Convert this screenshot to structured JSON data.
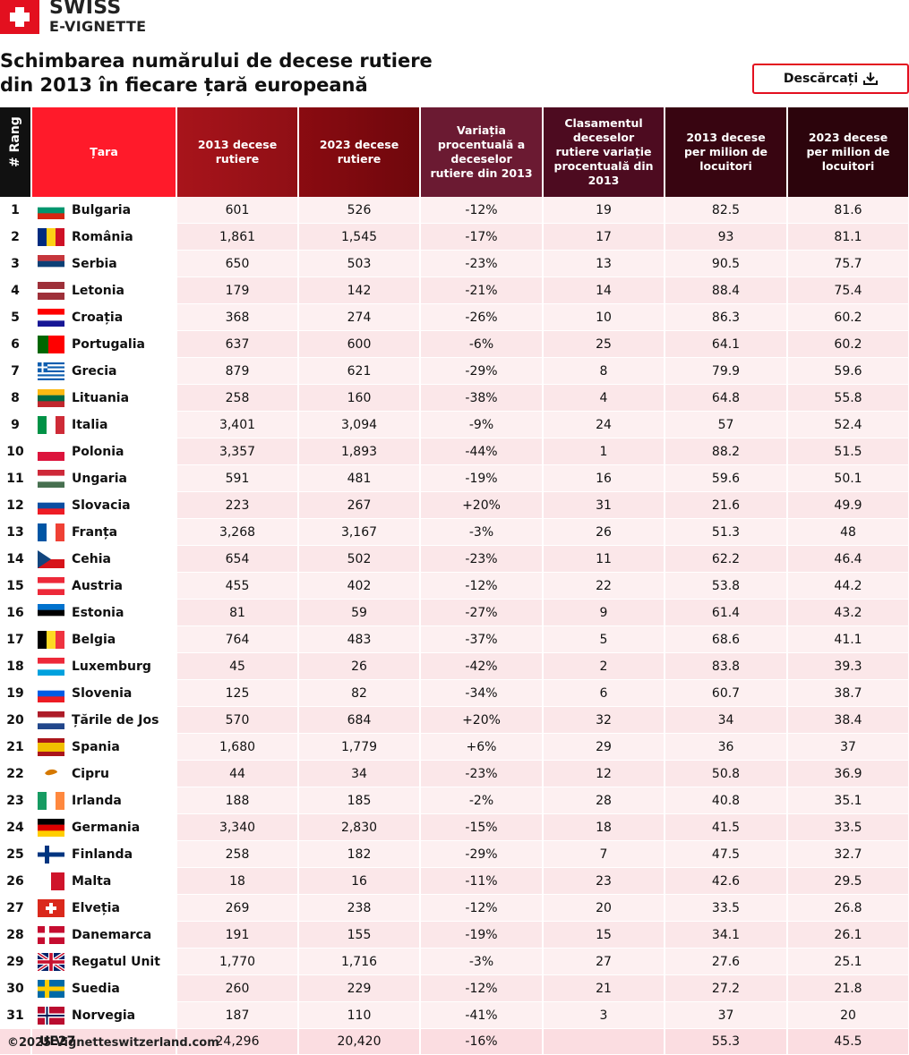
{
  "logo": {
    "line1": "SWISS",
    "line2": "E-VIGNETTE"
  },
  "title": {
    "line1": "Schimbarea numărului de decese rutiere",
    "line2": "din 2013 în fiecare țară europeană"
  },
  "download_button": "Descărcați",
  "table": {
    "headers": [
      "# Rang",
      "Țara",
      "2013 decese rutiere",
      "2023 decese rutiere",
      "Variația procentuală a deceselor rutiere din 2013",
      "Clasamentul deceselor rutiere variație procentuală din 2013",
      "2013 decese per milion de locuitori",
      "2023 decese per milion de locuitori"
    ],
    "rows": [
      [
        1,
        "Bulgaria",
        601,
        526,
        "-12%",
        19,
        82.5,
        81.6
      ],
      [
        2,
        "România",
        "1,861",
        "1,545",
        "-17%",
        17,
        93,
        81.1
      ],
      [
        3,
        "Serbia",
        650,
        503,
        "-23%",
        13,
        90.5,
        75.7
      ],
      [
        4,
        "Letonia",
        179,
        142,
        "-21%",
        14,
        88.4,
        75.4
      ],
      [
        5,
        "Croația",
        368,
        274,
        "-26%",
        10,
        86.3,
        60.2
      ],
      [
        6,
        "Portugalia",
        637,
        600,
        "-6%",
        25,
        64.1,
        60.2
      ],
      [
        7,
        "Grecia",
        879,
        621,
        "-29%",
        8,
        79.9,
        59.6
      ],
      [
        8,
        "Lituania",
        258,
        160,
        "-38%",
        4,
        64.8,
        55.8
      ],
      [
        9,
        "Italia",
        "3,401",
        "3,094",
        "-9%",
        24,
        57,
        52.4
      ],
      [
        10,
        "Polonia",
        "3,357",
        "1,893",
        "-44%",
        1,
        88.2,
        51.5
      ],
      [
        11,
        "Ungaria",
        591,
        481,
        "-19%",
        16,
        59.6,
        50.1
      ],
      [
        12,
        "Slovacia",
        223,
        267,
        "+20%",
        31,
        21.6,
        49.9
      ],
      [
        13,
        "Franța",
        "3,268",
        "3,167",
        "-3%",
        26,
        51.3,
        48
      ],
      [
        14,
        "Cehia",
        654,
        502,
        "-23%",
        11,
        62.2,
        46.4
      ],
      [
        15,
        "Austria",
        455,
        402,
        "-12%",
        22,
        53.8,
        44.2
      ],
      [
        16,
        "Estonia",
        81,
        59,
        "-27%",
        9,
        61.4,
        43.2
      ],
      [
        17,
        "Belgia",
        764,
        483,
        "-37%",
        5,
        68.6,
        41.1
      ],
      [
        18,
        "Luxemburg",
        45,
        26,
        "-42%",
        2,
        83.8,
        39.3
      ],
      [
        19,
        "Slovenia",
        125,
        82,
        "-34%",
        6,
        60.7,
        38.7
      ],
      [
        20,
        "Țările de Jos",
        570,
        684,
        "+20%",
        32,
        34,
        38.4
      ],
      [
        21,
        "Spania",
        "1,680",
        "1,779",
        "+6%",
        29,
        36,
        37
      ],
      [
        22,
        "Cipru",
        44,
        34,
        "-23%",
        12,
        50.8,
        36.9
      ],
      [
        23,
        "Irlanda",
        188,
        185,
        "-2%",
        28,
        40.8,
        35.1
      ],
      [
        24,
        "Germania",
        "3,340",
        "2,830",
        "-15%",
        18,
        41.5,
        33.5
      ],
      [
        25,
        "Finlanda",
        258,
        182,
        "-29%",
        7,
        47.5,
        32.7
      ],
      [
        26,
        "Malta",
        18,
        16,
        "-11%",
        23,
        42.6,
        29.5
      ],
      [
        27,
        "Elveția",
        269,
        238,
        "-12%",
        20,
        33.5,
        26.8
      ],
      [
        28,
        "Danemarca",
        191,
        155,
        "-19%",
        15,
        34.1,
        26.1
      ],
      [
        29,
        "Regatul Unit",
        "1,770",
        "1,716",
        "-3%",
        27,
        27.6,
        25.1
      ],
      [
        30,
        "Suedia",
        260,
        229,
        "-12%",
        21,
        27.2,
        21.8
      ],
      [
        31,
        "Norvegia",
        187,
        110,
        "-41%",
        3,
        37,
        20
      ]
    ],
    "total": {
      "label": "UE27",
      "deaths_2013": "24,296",
      "deaths_2023": "20,420",
      "change": "-16%",
      "per_million_2013": 55.3,
      "per_million_2023": 45.5
    }
  },
  "footer": "©2025 Vignetteswitzerland.com"
}
